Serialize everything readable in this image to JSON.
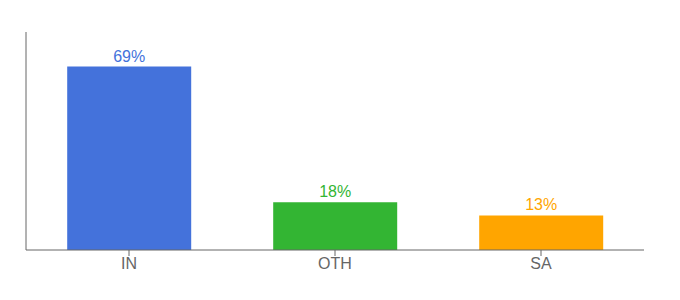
{
  "chart_data": {
    "type": "bar",
    "categories": [
      "IN",
      "OTH",
      "SA"
    ],
    "values": [
      69,
      18,
      13
    ],
    "value_labels": [
      "69%",
      "18%",
      "13%"
    ],
    "colors": [
      "#4472db",
      "#33b533",
      "#ffa500"
    ],
    "ylim": [
      0,
      82
    ],
    "data_labels": true,
    "tick_labels": "x",
    "grid": false
  }
}
